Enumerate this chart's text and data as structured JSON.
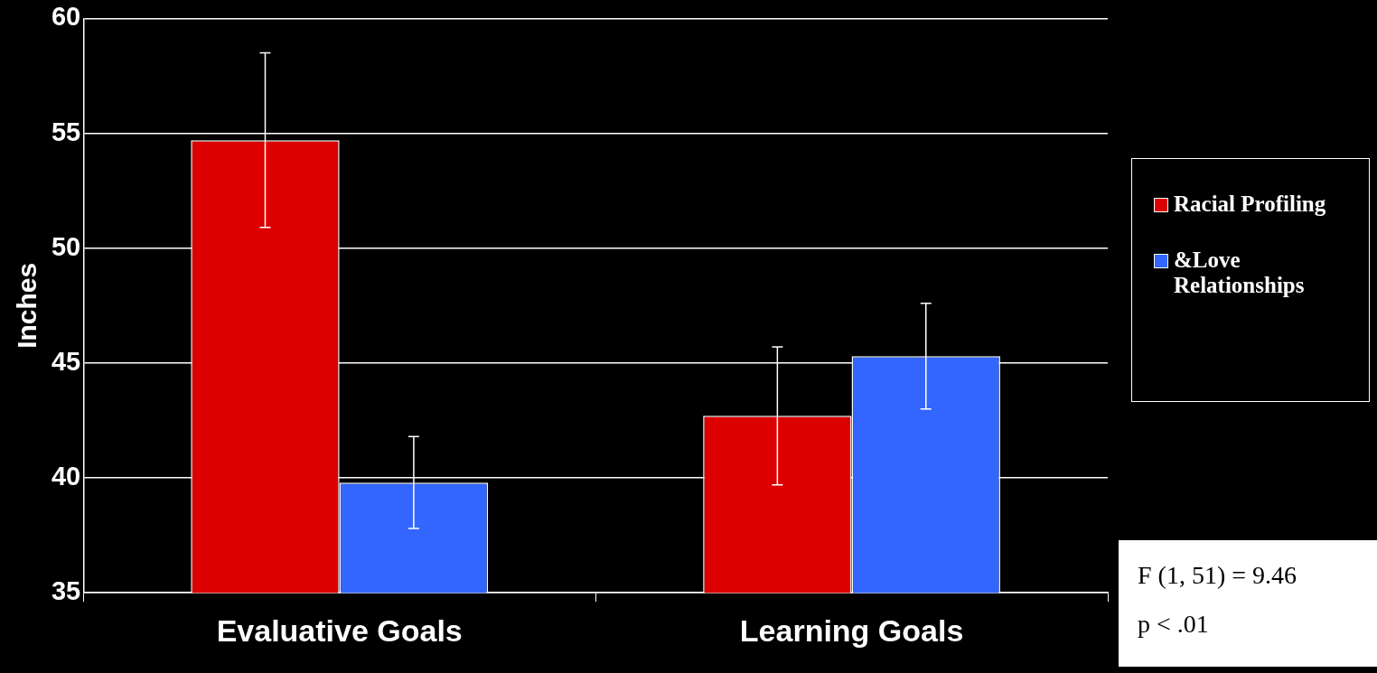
{
  "chart_data": {
    "type": "bar",
    "ylabel": "Inches",
    "categories": [
      "Evaluative Goals",
      "Learning Goals"
    ],
    "series": [
      {
        "name": "Racial Profiling",
        "color": "#dd0000",
        "values": [
          54.7,
          42.7
        ],
        "errors": [
          3.8,
          3.0
        ]
      },
      {
        "name": "&Love Relationships",
        "color": "#3366ff",
        "values": [
          39.8,
          45.3
        ],
        "errors": [
          2.0,
          2.3
        ]
      }
    ],
    "ylim": [
      35,
      60
    ],
    "yticks": [
      35,
      40,
      45,
      50,
      55,
      60
    ],
    "grid": "y",
    "legend": "right",
    "annotations": [
      "F (1, 51) = 9.46",
      "p < .01"
    ]
  }
}
